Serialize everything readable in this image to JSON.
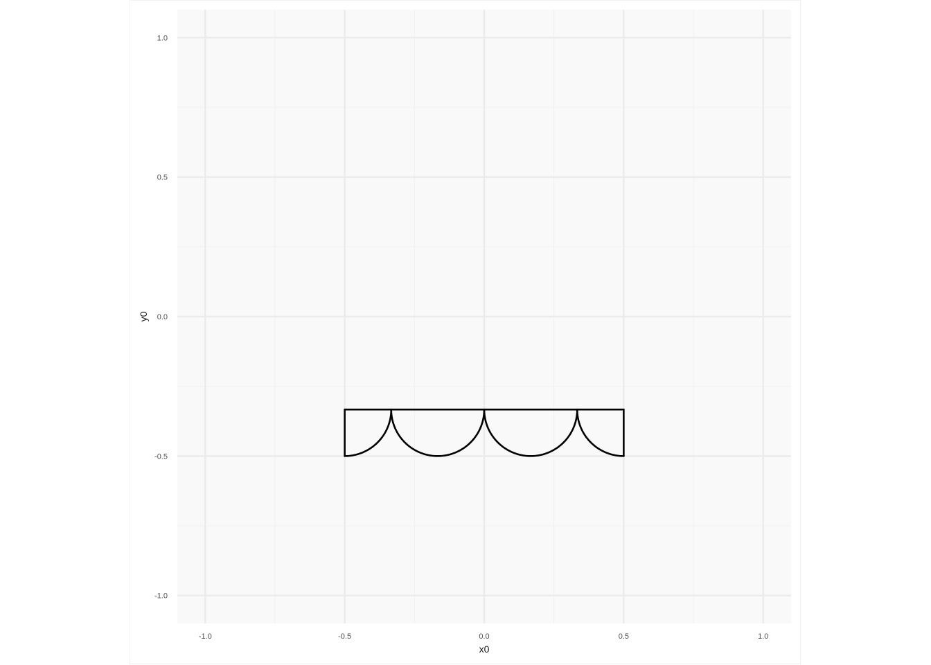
{
  "chart_data": {
    "type": "line",
    "title": "",
    "xlabel": "x0",
    "ylabel": "y0",
    "xlim": [
      -1.1,
      1.1
    ],
    "ylim": [
      -1.1,
      1.1
    ],
    "x_ticks": [
      -1.0,
      -0.5,
      0.0,
      0.5,
      1.0
    ],
    "x_tick_labels": [
      "-1.0",
      "-0.5",
      "0.0",
      "0.5",
      "1.0"
    ],
    "y_ticks": [
      -1.0,
      -0.5,
      0.0,
      0.5,
      1.0
    ],
    "y_tick_labels": [
      "-1.0",
      "-0.5",
      "0.0",
      "0.5",
      "1.0"
    ],
    "x_minor": [
      -0.75,
      -0.25,
      0.25,
      0.75
    ],
    "y_minor": [
      -0.75,
      -0.25,
      0.25,
      0.75
    ],
    "grid": true,
    "legend": "none",
    "shape": {
      "top_y": -0.3333,
      "bottom_y": -0.5,
      "x_left": -0.5,
      "x_right": 0.5,
      "arc_radius": 0.1667,
      "arcs": [
        {
          "center_x": -0.5,
          "from_deg": 270,
          "to_deg": 360
        },
        {
          "center_x": -0.1667,
          "from_deg": 180,
          "to_deg": 360
        },
        {
          "center_x": 0.1667,
          "from_deg": 180,
          "to_deg": 360
        },
        {
          "center_x": 0.5,
          "from_deg": 180,
          "to_deg": 270
        }
      ]
    },
    "colors": {
      "panel": "#f9f9f9",
      "grid_major": "#ebebeb",
      "grid_minor": "#f2f2f2",
      "line": "#000000"
    }
  }
}
